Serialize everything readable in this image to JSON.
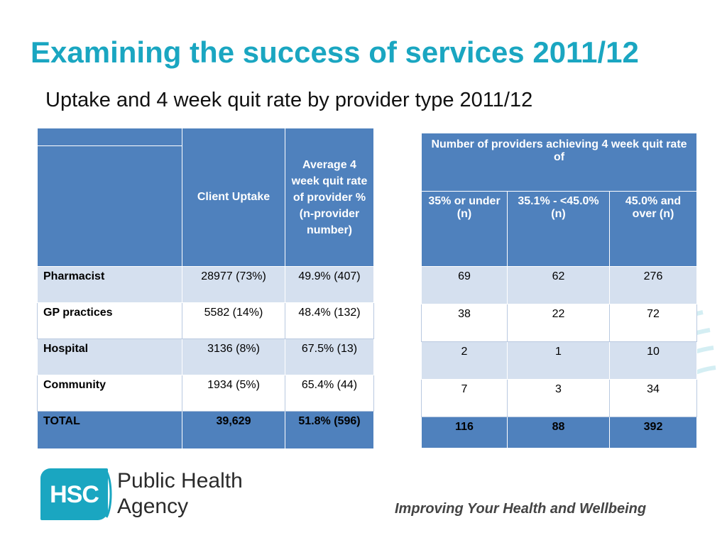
{
  "title": "Examining the success of services 2011/12",
  "subtitle": "Uptake and 4 week quit rate by provider type 2011/12",
  "left_table": {
    "headers": [
      "Client Uptake",
      "Average 4 week quit rate of provider % (n-provider number)"
    ],
    "rows": [
      {
        "label": "Pharmacist",
        "uptake": "28977 (73%)",
        "rate": "49.9% (407)"
      },
      {
        "label": "GP practices",
        "uptake": "5582 (14%)",
        "rate": "48.4% (132)"
      },
      {
        "label": "Hospital",
        "uptake": "3136 (8%)",
        "rate": "67.5% (13)"
      },
      {
        "label": "Community",
        "uptake": "1934 (5%)",
        "rate": "65.4% (44)"
      },
      {
        "label": "TOTAL",
        "uptake": "39,629",
        "rate": "51.8% (596)"
      }
    ]
  },
  "right_table": {
    "header": "Number of providers  achieving 4 week quit rate of",
    "columns": [
      "35% or under (n)",
      "35.1% - <45.0% (n)",
      "45.0% and over (n)"
    ],
    "rows": [
      [
        "69",
        "62",
        "276"
      ],
      [
        "38",
        "22",
        "72"
      ],
      [
        "2",
        "1",
        "10"
      ],
      [
        "7",
        "3",
        "34"
      ],
      [
        "116",
        "88",
        "392"
      ]
    ]
  },
  "logo": {
    "mark": "HSC",
    "line1": "Public Health",
    "line2": "Agency"
  },
  "tagline": "Improving Your Health and Wellbeing",
  "colors": {
    "title": "#1aa6c1",
    "header": "#4f81bd",
    "row_alt": "#d5e0ef"
  }
}
